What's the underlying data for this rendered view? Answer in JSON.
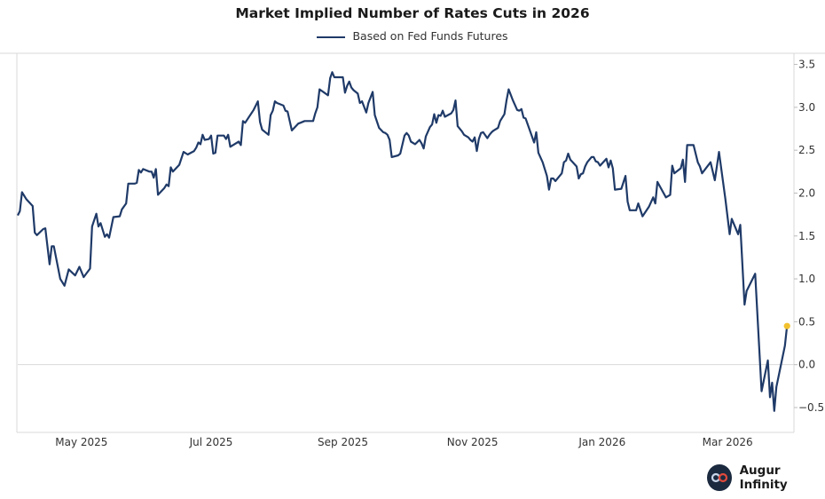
{
  "chart_data": {
    "type": "line",
    "title": "Market Implied Number of Rates Cuts in 2026",
    "xlabel": "",
    "ylabel": "",
    "xlim": [
      "2025-04-01",
      "2026-03-31"
    ],
    "ylim": [
      -0.79,
      3.63
    ],
    "grid": false,
    "legend": "top-center",
    "x_ticks": [
      {
        "date": "2025-05-01",
        "label": "May 2025"
      },
      {
        "date": "2025-07-01",
        "label": "Jul 2025"
      },
      {
        "date": "2025-09-01",
        "label": "Sep 2025"
      },
      {
        "date": "2025-11-01",
        "label": "Nov 2025"
      },
      {
        "date": "2026-01-01",
        "label": "Jan 2026"
      },
      {
        "date": "2026-03-01",
        "label": "Mar 2026"
      }
    ],
    "y_ticks": [
      {
        "value": 3.5,
        "label": "3.5"
      },
      {
        "value": 3.0,
        "label": "3.0"
      },
      {
        "value": 2.5,
        "label": "2.5"
      },
      {
        "value": 2.0,
        "label": "2.0"
      },
      {
        "value": 1.5,
        "label": "1.5"
      },
      {
        "value": 1.0,
        "label": "1.0"
      },
      {
        "value": 0.5,
        "label": "0.5"
      },
      {
        "value": 0.0,
        "label": "0.0"
      },
      {
        "value": -0.5,
        "label": "−0.5"
      }
    ],
    "y_axis_side": "right",
    "reference_line": 0,
    "series": [
      {
        "name": "Based on Fed Funds Futures",
        "color": "#1f3a68",
        "last_point_marker_color": "#f2c12e",
        "points": [
          [
            "2025-04-01",
            1.74
          ],
          [
            "2025-04-02",
            1.79
          ],
          [
            "2025-04-03",
            2.01
          ],
          [
            "2025-04-05",
            1.93
          ],
          [
            "2025-04-08",
            1.85
          ],
          [
            "2025-04-09",
            1.54
          ],
          [
            "2025-04-10",
            1.51
          ],
          [
            "2025-04-13",
            1.58
          ],
          [
            "2025-04-14",
            1.59
          ],
          [
            "2025-04-16",
            1.17
          ],
          [
            "2025-04-17",
            1.38
          ],
          [
            "2025-04-18",
            1.38
          ],
          [
            "2025-04-21",
            1.0
          ],
          [
            "2025-04-23",
            0.92
          ],
          [
            "2025-04-25",
            1.11
          ],
          [
            "2025-04-28",
            1.04
          ],
          [
            "2025-04-30",
            1.14
          ],
          [
            "2025-05-02",
            1.02
          ],
          [
            "2025-05-05",
            1.12
          ],
          [
            "2025-05-06",
            1.61
          ],
          [
            "2025-05-08",
            1.76
          ],
          [
            "2025-05-09",
            1.61
          ],
          [
            "2025-05-10",
            1.65
          ],
          [
            "2025-05-12",
            1.49
          ],
          [
            "2025-05-13",
            1.52
          ],
          [
            "2025-05-14",
            1.48
          ],
          [
            "2025-05-16",
            1.72
          ],
          [
            "2025-05-19",
            1.73
          ],
          [
            "2025-05-20",
            1.81
          ],
          [
            "2025-05-22",
            1.88
          ],
          [
            "2025-05-23",
            2.11
          ],
          [
            "2025-05-26",
            2.11
          ],
          [
            "2025-05-27",
            2.12
          ],
          [
            "2025-05-28",
            2.27
          ],
          [
            "2025-05-29",
            2.24
          ],
          [
            "2025-05-30",
            2.28
          ],
          [
            "2025-06-02",
            2.25
          ],
          [
            "2025-06-03",
            2.25
          ],
          [
            "2025-06-04",
            2.18
          ],
          [
            "2025-06-05",
            2.28
          ],
          [
            "2025-06-06",
            1.98
          ],
          [
            "2025-06-09",
            2.06
          ],
          [
            "2025-06-10",
            2.1
          ],
          [
            "2025-06-11",
            2.08
          ],
          [
            "2025-06-12",
            2.3
          ],
          [
            "2025-06-13",
            2.25
          ],
          [
            "2025-06-16",
            2.33
          ],
          [
            "2025-06-18",
            2.48
          ],
          [
            "2025-06-20",
            2.45
          ],
          [
            "2025-06-23",
            2.49
          ],
          [
            "2025-06-24",
            2.53
          ],
          [
            "2025-06-25",
            2.59
          ],
          [
            "2025-06-26",
            2.57
          ],
          [
            "2025-06-27",
            2.68
          ],
          [
            "2025-06-28",
            2.62
          ],
          [
            "2025-06-30",
            2.63
          ],
          [
            "2025-07-01",
            2.67
          ],
          [
            "2025-07-02",
            2.46
          ],
          [
            "2025-07-03",
            2.47
          ],
          [
            "2025-07-04",
            2.67
          ],
          [
            "2025-07-07",
            2.67
          ],
          [
            "2025-07-08",
            2.63
          ],
          [
            "2025-07-09",
            2.68
          ],
          [
            "2025-07-10",
            2.54
          ],
          [
            "2025-07-14",
            2.6
          ],
          [
            "2025-07-15",
            2.56
          ],
          [
            "2025-07-16",
            2.84
          ],
          [
            "2025-07-17",
            2.82
          ],
          [
            "2025-07-21",
            2.97
          ],
          [
            "2025-07-23",
            3.07
          ],
          [
            "2025-07-24",
            2.83
          ],
          [
            "2025-07-25",
            2.74
          ],
          [
            "2025-07-28",
            2.68
          ],
          [
            "2025-07-29",
            2.91
          ],
          [
            "2025-07-30",
            2.96
          ],
          [
            "2025-07-31",
            3.07
          ],
          [
            "2025-08-01",
            3.05
          ],
          [
            "2025-08-04",
            3.02
          ],
          [
            "2025-08-05",
            2.96
          ],
          [
            "2025-08-06",
            2.95
          ],
          [
            "2025-08-08",
            2.73
          ],
          [
            "2025-08-11",
            2.81
          ],
          [
            "2025-08-12",
            2.82
          ],
          [
            "2025-08-13",
            2.83
          ],
          [
            "2025-08-14",
            2.84
          ],
          [
            "2025-08-18",
            2.84
          ],
          [
            "2025-08-19",
            2.93
          ],
          [
            "2025-08-20",
            3.0
          ],
          [
            "2025-08-21",
            3.21
          ],
          [
            "2025-08-25",
            3.14
          ],
          [
            "2025-08-26",
            3.34
          ],
          [
            "2025-08-27",
            3.41
          ],
          [
            "2025-08-28",
            3.35
          ],
          [
            "2025-09-01",
            3.35
          ],
          [
            "2025-09-02",
            3.17
          ],
          [
            "2025-09-03",
            3.25
          ],
          [
            "2025-09-04",
            3.3
          ],
          [
            "2025-09-05",
            3.23
          ],
          [
            "2025-09-06",
            3.2
          ],
          [
            "2025-09-08",
            3.16
          ],
          [
            "2025-09-09",
            3.05
          ],
          [
            "2025-09-10",
            3.07
          ],
          [
            "2025-09-12",
            2.94
          ],
          [
            "2025-09-13",
            3.05
          ],
          [
            "2025-09-15",
            3.18
          ],
          [
            "2025-09-16",
            2.91
          ],
          [
            "2025-09-18",
            2.76
          ],
          [
            "2025-09-20",
            2.71
          ],
          [
            "2025-09-21",
            2.7
          ],
          [
            "2025-09-22",
            2.68
          ],
          [
            "2025-09-23",
            2.62
          ],
          [
            "2025-09-24",
            2.42
          ],
          [
            "2025-09-27",
            2.44
          ],
          [
            "2025-09-28",
            2.46
          ],
          [
            "2025-09-30",
            2.67
          ],
          [
            "2025-10-01",
            2.7
          ],
          [
            "2025-10-02",
            2.67
          ],
          [
            "2025-10-03",
            2.6
          ],
          [
            "2025-10-05",
            2.57
          ],
          [
            "2025-10-07",
            2.62
          ],
          [
            "2025-10-08",
            2.58
          ],
          [
            "2025-10-09",
            2.52
          ],
          [
            "2025-10-10",
            2.66
          ],
          [
            "2025-10-12",
            2.77
          ],
          [
            "2025-10-13",
            2.8
          ],
          [
            "2025-10-14",
            2.92
          ],
          [
            "2025-10-15",
            2.82
          ],
          [
            "2025-10-16",
            2.91
          ],
          [
            "2025-10-17",
            2.9
          ],
          [
            "2025-10-18",
            2.96
          ],
          [
            "2025-10-19",
            2.89
          ],
          [
            "2025-10-22",
            2.93
          ],
          [
            "2025-10-23",
            2.97
          ],
          [
            "2025-10-24",
            3.08
          ],
          [
            "2025-10-25",
            2.78
          ],
          [
            "2025-10-27",
            2.72
          ],
          [
            "2025-10-28",
            2.68
          ],
          [
            "2025-10-30",
            2.65
          ],
          [
            "2025-10-31",
            2.62
          ],
          [
            "2025-11-01",
            2.6
          ],
          [
            "2025-11-02",
            2.65
          ],
          [
            "2025-11-03",
            2.49
          ],
          [
            "2025-11-04",
            2.63
          ],
          [
            "2025-11-05",
            2.7
          ],
          [
            "2025-11-06",
            2.71
          ],
          [
            "2025-11-08",
            2.64
          ],
          [
            "2025-11-09",
            2.68
          ],
          [
            "2025-11-10",
            2.71
          ],
          [
            "2025-11-11",
            2.73
          ],
          [
            "2025-11-13",
            2.76
          ],
          [
            "2025-11-14",
            2.84
          ],
          [
            "2025-11-16",
            2.92
          ],
          [
            "2025-11-17",
            3.08
          ],
          [
            "2025-11-18",
            3.21
          ],
          [
            "2025-11-20",
            3.08
          ],
          [
            "2025-11-22",
            2.97
          ],
          [
            "2025-11-23",
            2.96
          ],
          [
            "2025-11-24",
            2.98
          ],
          [
            "2025-11-25",
            2.88
          ],
          [
            "2025-11-26",
            2.87
          ],
          [
            "2025-11-30",
            2.59
          ],
          [
            "2025-12-01",
            2.71
          ],
          [
            "2025-12-02",
            2.47
          ],
          [
            "2025-12-04",
            2.36
          ],
          [
            "2025-12-06",
            2.2
          ],
          [
            "2025-12-07",
            2.04
          ],
          [
            "2025-12-08",
            2.17
          ],
          [
            "2025-12-09",
            2.17
          ],
          [
            "2025-12-10",
            2.14
          ],
          [
            "2025-12-13",
            2.23
          ],
          [
            "2025-12-14",
            2.36
          ],
          [
            "2025-12-15",
            2.38
          ],
          [
            "2025-12-16",
            2.46
          ],
          [
            "2025-12-17",
            2.39
          ],
          [
            "2025-12-20",
            2.31
          ],
          [
            "2025-12-21",
            2.17
          ],
          [
            "2025-12-22",
            2.22
          ],
          [
            "2025-12-23",
            2.23
          ],
          [
            "2025-12-24",
            2.31
          ],
          [
            "2025-12-25",
            2.36
          ],
          [
            "2025-12-27",
            2.42
          ],
          [
            "2025-12-28",
            2.42
          ],
          [
            "2025-12-29",
            2.37
          ],
          [
            "2025-12-30",
            2.36
          ],
          [
            "2025-12-31",
            2.32
          ],
          [
            "2026-01-03",
            2.4
          ],
          [
            "2026-01-04",
            2.3
          ],
          [
            "2026-01-05",
            2.38
          ],
          [
            "2026-01-06",
            2.29
          ],
          [
            "2026-01-07",
            2.04
          ],
          [
            "2026-01-10",
            2.05
          ],
          [
            "2026-01-12",
            2.2
          ],
          [
            "2026-01-13",
            1.9
          ],
          [
            "2026-01-14",
            1.8
          ],
          [
            "2026-01-17",
            1.8
          ],
          [
            "2026-01-18",
            1.88
          ],
          [
            "2026-01-20",
            1.73
          ],
          [
            "2026-01-23",
            1.84
          ],
          [
            "2026-01-25",
            1.95
          ],
          [
            "2026-01-26",
            1.88
          ],
          [
            "2026-01-27",
            2.13
          ],
          [
            "2026-01-31",
            1.95
          ],
          [
            "2026-02-02",
            1.98
          ],
          [
            "2026-02-03",
            2.32
          ],
          [
            "2026-02-04",
            2.23
          ],
          [
            "2026-02-07",
            2.29
          ],
          [
            "2026-02-08",
            2.39
          ],
          [
            "2026-02-09",
            2.13
          ],
          [
            "2026-02-10",
            2.56
          ],
          [
            "2026-02-13",
            2.56
          ],
          [
            "2026-02-15",
            2.36
          ],
          [
            "2026-02-16",
            2.31
          ],
          [
            "2026-02-17",
            2.23
          ],
          [
            "2026-02-21",
            2.36
          ],
          [
            "2026-02-23",
            2.15
          ],
          [
            "2026-02-25",
            2.48
          ],
          [
            "2026-02-28",
            1.93
          ],
          [
            "2026-03-02",
            1.52
          ],
          [
            "2026-03-03",
            1.7
          ],
          [
            "2026-03-06",
            1.52
          ],
          [
            "2026-03-07",
            1.63
          ],
          [
            "2026-03-09",
            0.7
          ],
          [
            "2026-03-10",
            0.86
          ],
          [
            "2026-03-14",
            1.06
          ],
          [
            "2026-03-17",
            -0.31
          ],
          [
            "2026-03-20",
            0.05
          ],
          [
            "2026-03-21",
            -0.38
          ],
          [
            "2026-03-22",
            -0.21
          ],
          [
            "2026-03-23",
            -0.54
          ],
          [
            "2026-03-24",
            -0.26
          ],
          [
            "2026-03-28",
            0.22
          ],
          [
            "2026-03-29",
            0.45
          ]
        ]
      }
    ]
  },
  "brand": {
    "name": "Augur Infinity",
    "logo_colors": [
      "#1b2a3f",
      "#e04a3c",
      "#c9d6ea"
    ]
  }
}
